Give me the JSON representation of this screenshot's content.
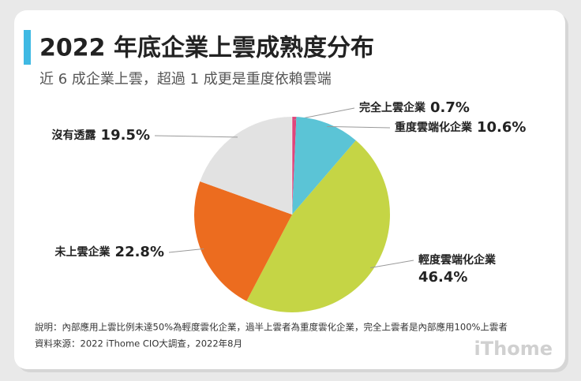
{
  "chart_data": {
    "type": "pie",
    "title": "2022 年底企業上雲成熟度分布",
    "subtitle": "近 6 成企業上雲，超過 1 成更是重度依賴雲端",
    "categories": [
      "完全上雲企業",
      "重度雲端化企業",
      "輕度雲端化企業",
      "未上雲企業",
      "沒有透露"
    ],
    "values": [
      0.7,
      10.6,
      46.4,
      22.8,
      19.5
    ],
    "value_labels": [
      "0.7%",
      "10.6%",
      "46.4%",
      "22.8%",
      "19.5%"
    ],
    "colors": [
      "#e0457b",
      "#5bc4d6",
      "#c5d545",
      "#ec6c1f",
      "#e2e2e2"
    ],
    "notes": [
      "說明：內部應用上雲比例未達50%為輕度雲化企業，過半上雲者為重度雲化企業，完全上雲者是內部應用100%上雲者",
      "資料來源：2022 iThome CIO大調查，2022年8月"
    ],
    "logo": "iThome"
  }
}
